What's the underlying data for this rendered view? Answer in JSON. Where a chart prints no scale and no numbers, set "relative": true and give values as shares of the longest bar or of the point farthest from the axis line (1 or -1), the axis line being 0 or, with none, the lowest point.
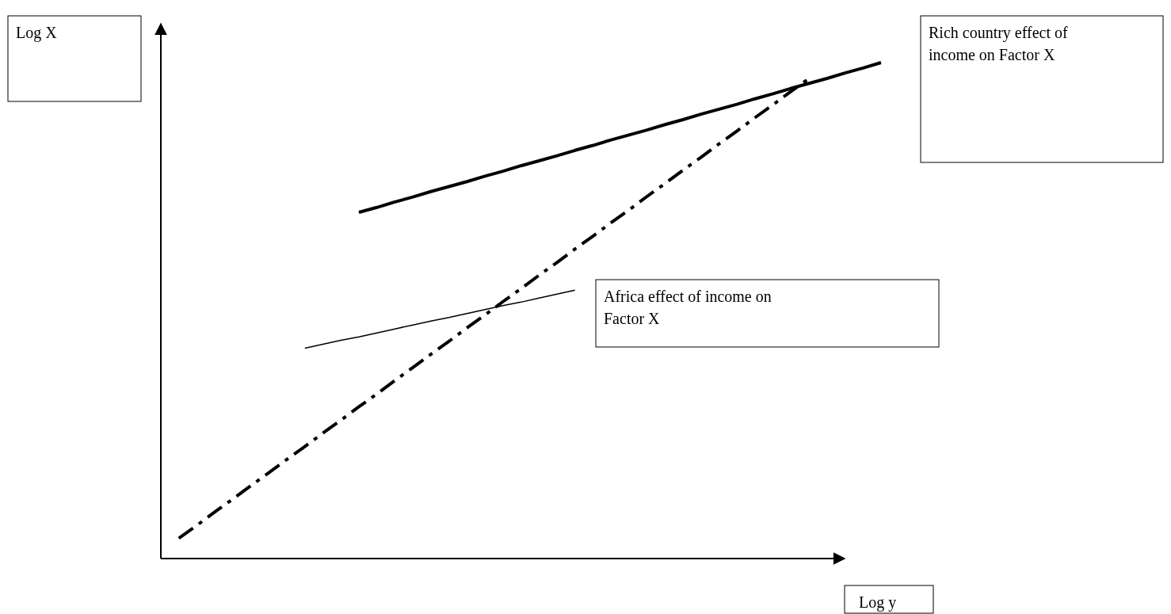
{
  "chart_data": {
    "type": "line",
    "relative": true,
    "xlabel": "Log y",
    "categories": [
      null,
      null,
      null,
      null,
      null,
      null,
      null,
      null,
      null,
      null,
      null,
      null,
      null,
      null,
      null,
      null,
      null,
      null,
      null,
      null,
      null,
      null,
      null,
      null,
      null,
      null,
      null,
      null,
      null,
      null,
      null,
      null,
      null,
      null,
      null,
      null,
      null,
      null,
      null,
      null,
      null
    ],
    "series": [
      {
        "color": "#000000",
        "line_style": "solid",
        "values": [
          null,
          null,
          null,
          null,
          null,
          null,
          null,
          null,
          null,
          null,
          null,
          0.698,
          0.708,
          0.719,
          0.729,
          0.74,
          0.75,
          0.76,
          0.771,
          0.781,
          0.792,
          0.802,
          0.812,
          0.823,
          0.833,
          0.844,
          0.854,
          0.864,
          0.875,
          0.885,
          0.896,
          0.906,
          0.916,
          0.927,
          0.937,
          0.948,
          0.958,
          0.968,
          0.979,
          0.989,
          1
        ]
      },
      {
        "color": "#000000",
        "line_style": "solid",
        "values": [
          null,
          null,
          null,
          null,
          null,
          null,
          null,
          null,
          0.424,
          0.432,
          0.44,
          0.447,
          0.455,
          0.463,
          0.471,
          0.479,
          0.486,
          0.494,
          0.502,
          0.51,
          0.517,
          0.525,
          0.533,
          0.541,
          null,
          null,
          null,
          null,
          null,
          null,
          null,
          null,
          null,
          null,
          null,
          null,
          null,
          null,
          null,
          null,
          null
        ]
      },
      {
        "color": "#000000",
        "line_style": "dashed",
        "values": [
          null,
          0.041,
          0.067,
          0.094,
          0.12,
          0.147,
          0.173,
          0.2,
          0.226,
          0.253,
          0.279,
          0.306,
          0.332,
          0.359,
          0.385,
          0.412,
          0.438,
          0.465,
          0.491,
          0.518,
          0.544,
          0.571,
          0.597,
          0.624,
          0.65,
          0.677,
          0.703,
          0.73,
          0.756,
          0.783,
          0.809,
          0.836,
          0.862,
          0.889,
          0.915,
          0.942,
          0.968,
          null,
          null,
          null,
          null
        ]
      }
    ],
    "annotations": [
      "Log X",
      "Rich country effect of income on Factor X",
      "Africa effect of income on Factor X"
    ]
  }
}
